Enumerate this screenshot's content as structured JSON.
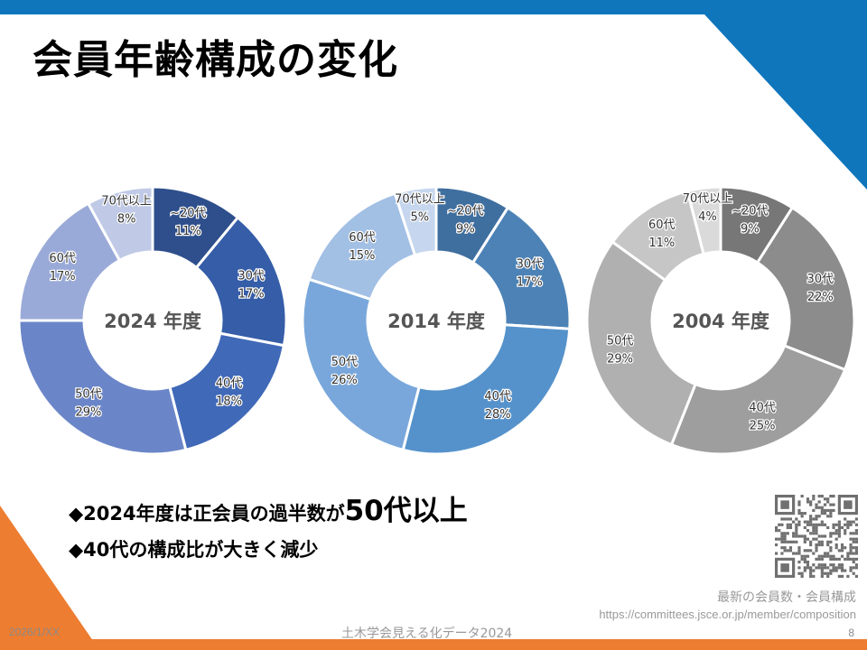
{
  "title": "会員年齢構成の変化",
  "bullets": [
    {
      "text": "◆2024年度は正会員の過半数が",
      "emphasis": "50代以上"
    },
    {
      "text": "◆40代の構成比が大きく減少",
      "emphasis": ""
    }
  ],
  "source": {
    "label": "最新の会員数・会員構成",
    "url": "https://committees.jsce.or.jp/member/composition"
  },
  "footer": {
    "date": "2026/1/XX",
    "center": "土木学会見える化データ2024",
    "page_number": "8"
  },
  "colors": {
    "top_bar": "#0f76bc",
    "accent_orange": "#ed7d31"
  },
  "chart_data": [
    {
      "type": "pie",
      "variant": "donut",
      "title": "2024 年度",
      "categories": [
        "~20代",
        "30代",
        "40代",
        "50代",
        "60代",
        "70代以上"
      ],
      "values": [
        11,
        17,
        18,
        29,
        17,
        8
      ],
      "labels": [
        "11%",
        "17%",
        "18%",
        "29%",
        "17%",
        "8%"
      ],
      "colors": [
        "#2e4f8c",
        "#355da8",
        "#4069b8",
        "#6b86c8",
        "#9aaad8",
        "#c0cae6"
      ]
    },
    {
      "type": "pie",
      "variant": "donut",
      "title": "2014 年度",
      "categories": [
        "~20代",
        "30代",
        "40代",
        "50代",
        "60代",
        "70代以上"
      ],
      "values": [
        9,
        17,
        28,
        26,
        15,
        5
      ],
      "labels": [
        "9%",
        "17%",
        "28%",
        "26%",
        "15%",
        "5%"
      ],
      "colors": [
        "#3f6f9f",
        "#4c82b6",
        "#5592cb",
        "#79a7db",
        "#a2bfe4",
        "#c5d6ee"
      ]
    },
    {
      "type": "pie",
      "variant": "donut",
      "title": "2004 年度",
      "categories": [
        "~20代",
        "30代",
        "40代",
        "50代",
        "60代",
        "70代以上"
      ],
      "values": [
        9,
        22,
        25,
        29,
        11,
        4
      ],
      "labels": [
        "9%",
        "22%",
        "25%",
        "29%",
        "11%",
        "4%"
      ],
      "colors": [
        "#777777",
        "#8c8c8c",
        "#9e9e9e",
        "#b0b0b0",
        "#c6c6c6",
        "#dadada"
      ]
    }
  ]
}
